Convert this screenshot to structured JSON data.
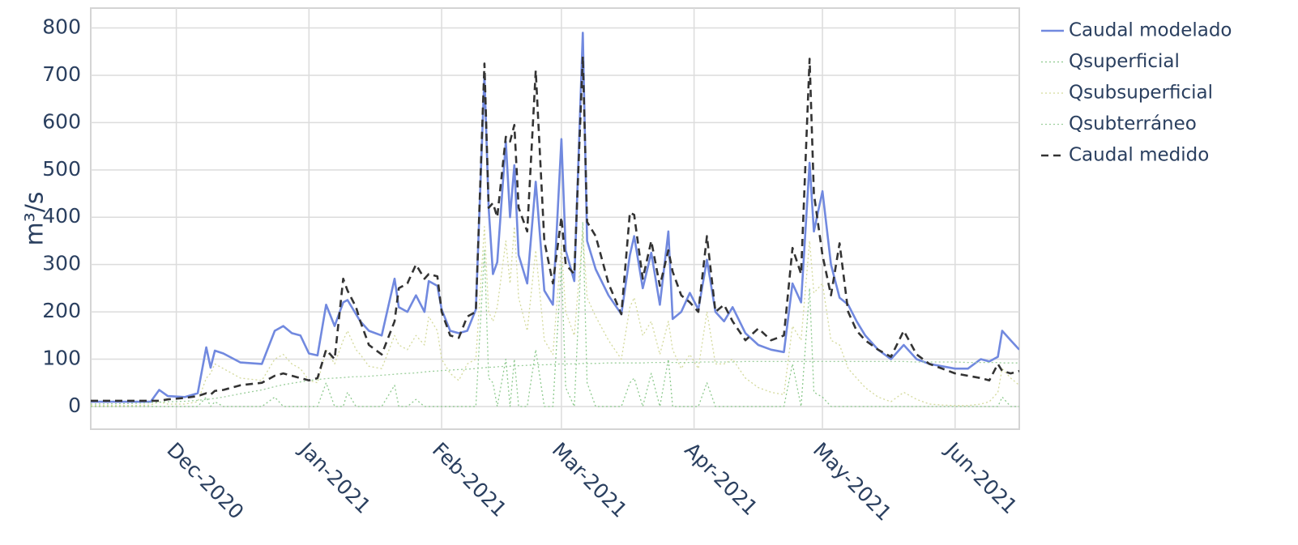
{
  "chart_data": {
    "type": "line",
    "y_label": "m³/s",
    "x": [
      "2020-11-11",
      "2020-11-19",
      "2020-11-25",
      "2020-11-27",
      "2020-11-29",
      "2020-12-03",
      "2020-12-06",
      "2020-12-08",
      "2020-12-09",
      "2020-12-10",
      "2020-12-12",
      "2020-12-16",
      "2020-12-21",
      "2020-12-24",
      "2020-12-26",
      "2020-12-28",
      "2020-12-30",
      "2021-01-01",
      "2021-01-03",
      "2021-01-05",
      "2021-01-07",
      "2021-01-09",
      "2021-01-10",
      "2021-01-12",
      "2021-01-13",
      "2021-01-15",
      "2021-01-18",
      "2021-01-21",
      "2021-01-22",
      "2021-01-24",
      "2021-01-26",
      "2021-01-28",
      "2021-01-29",
      "2021-01-31",
      "2021-02-01",
      "2021-02-03",
      "2021-02-05",
      "2021-02-07",
      "2021-02-09",
      "2021-02-11",
      "2021-02-12",
      "2021-02-13",
      "2021-02-14",
      "2021-02-16",
      "2021-02-17",
      "2021-02-18",
      "2021-02-19",
      "2021-02-21",
      "2021-02-23",
      "2021-02-25",
      "2021-02-27",
      "2021-03-01",
      "2021-03-02",
      "2021-03-04",
      "2021-03-06",
      "2021-03-07",
      "2021-03-09",
      "2021-03-12",
      "2021-03-15",
      "2021-03-17",
      "2021-03-18",
      "2021-03-20",
      "2021-03-22",
      "2021-03-24",
      "2021-03-26",
      "2021-03-27",
      "2021-03-29",
      "2021-03-31",
      "2021-04-02",
      "2021-04-04",
      "2021-04-06",
      "2021-04-08",
      "2021-04-10",
      "2021-04-13",
      "2021-04-16",
      "2021-04-19",
      "2021-04-22",
      "2021-04-24",
      "2021-04-26",
      "2021-04-28",
      "2021-04-29",
      "2021-05-01",
      "2021-05-03",
      "2021-05-05",
      "2021-05-07",
      "2021-05-09",
      "2021-05-11",
      "2021-05-14",
      "2021-05-17",
      "2021-05-20",
      "2021-05-23",
      "2021-05-26",
      "2021-05-29",
      "2021-06-01",
      "2021-06-04",
      "2021-06-07",
      "2021-06-09",
      "2021-06-11",
      "2021-06-12",
      "2021-06-14",
      "2021-06-16"
    ],
    "series": [
      {
        "name": "Caudal modelado",
        "color": "#7189df",
        "dash": "solid",
        "values": [
          10,
          10,
          10,
          35,
          22,
          20,
          28,
          125,
          82,
          118,
          112,
          93,
          90,
          160,
          170,
          155,
          150,
          112,
          108,
          215,
          170,
          220,
          225,
          195,
          180,
          160,
          150,
          270,
          210,
          200,
          235,
          200,
          265,
          255,
          205,
          160,
          155,
          160,
          205,
          700,
          420,
          280,
          305,
          560,
          400,
          510,
          320,
          260,
          475,
          245,
          215,
          565,
          330,
          265,
          790,
          350,
          290,
          235,
          195,
          320,
          360,
          250,
          325,
          215,
          370,
          185,
          200,
          240,
          205,
          310,
          200,
          180,
          210,
          155,
          130,
          120,
          115,
          260,
          220,
          515,
          370,
          455,
          300,
          230,
          215,
          180,
          150,
          120,
          100,
          130,
          100,
          90,
          85,
          80,
          80,
          100,
          95,
          105,
          160,
          140,
          120
        ]
      },
      {
        "name": "Qsuperficial",
        "color": "#8cc98c",
        "dash": "dot",
        "values": [
          0,
          0,
          0,
          0,
          0,
          0,
          0,
          20,
          0,
          10,
          0,
          0,
          0,
          20,
          0,
          0,
          0,
          0,
          0,
          50,
          0,
          0,
          30,
          0,
          0,
          0,
          0,
          45,
          0,
          0,
          15,
          0,
          0,
          0,
          0,
          0,
          0,
          0,
          0,
          330,
          60,
          50,
          0,
          100,
          0,
          100,
          0,
          0,
          120,
          0,
          0,
          300,
          40,
          0,
          390,
          50,
          0,
          0,
          0,
          50,
          60,
          0,
          70,
          0,
          100,
          0,
          0,
          0,
          0,
          50,
          0,
          0,
          0,
          0,
          0,
          0,
          0,
          90,
          0,
          250,
          30,
          20,
          0,
          0,
          0,
          0,
          0,
          0,
          0,
          0,
          0,
          0,
          0,
          0,
          0,
          0,
          0,
          0,
          20,
          0,
          0
        ]
      },
      {
        "name": "Qsubsuperficial",
        "color": "#d3d99a",
        "dash": "dot",
        "values": [
          2,
          2,
          3,
          10,
          5,
          5,
          10,
          60,
          70,
          90,
          80,
          60,
          55,
          100,
          110,
          90,
          80,
          55,
          50,
          120,
          90,
          140,
          160,
          120,
          110,
          85,
          80,
          150,
          130,
          120,
          150,
          130,
          190,
          160,
          100,
          70,
          55,
          90,
          100,
          380,
          200,
          180,
          210,
          350,
          260,
          380,
          230,
          160,
          330,
          140,
          110,
          340,
          200,
          150,
          370,
          230,
          190,
          140,
          100,
          210,
          230,
          150,
          180,
          110,
          180,
          120,
          80,
          110,
          80,
          200,
          90,
          90,
          100,
          60,
          40,
          30,
          25,
          170,
          140,
          350,
          240,
          260,
          140,
          130,
          80,
          60,
          40,
          20,
          10,
          30,
          15,
          5,
          3,
          2,
          2,
          5,
          10,
          30,
          80,
          60,
          45
        ]
      },
      {
        "name": "Qsubterráneo",
        "color": "#9ccf9c",
        "dash": "dot",
        "values": [
          5,
          6,
          8,
          9,
          10,
          11,
          13,
          15,
          16,
          17,
          20,
          27,
          35,
          42,
          46,
          49,
          52,
          55,
          57,
          59,
          60,
          61,
          62,
          63,
          63,
          64,
          66,
          68,
          69,
          70,
          71,
          73,
          74,
          75,
          76,
          77,
          78,
          79,
          80,
          82,
          83,
          83,
          84,
          85,
          85,
          86,
          86,
          87,
          88,
          88,
          89,
          90,
          90,
          90,
          91,
          91,
          91,
          92,
          92,
          92,
          92,
          92,
          93,
          93,
          93,
          93,
          93,
          93,
          94,
          94,
          94,
          94,
          94,
          95,
          95,
          95,
          95,
          95,
          95,
          95,
          95,
          95,
          95,
          95,
          95,
          95,
          95,
          95,
          95,
          95,
          94,
          94,
          94,
          94,
          93,
          93,
          93,
          93,
          92,
          92,
          92
        ]
      },
      {
        "name": "Caudal medido",
        "color": "#333333",
        "dash": "dash",
        "values": [
          12,
          12,
          12,
          12,
          15,
          18,
          22,
          28,
          25,
          33,
          35,
          45,
          50,
          65,
          70,
          65,
          60,
          55,
          60,
          120,
          100,
          270,
          245,
          210,
          180,
          130,
          110,
          180,
          250,
          260,
          300,
          270,
          280,
          275,
          200,
          150,
          145,
          190,
          200,
          725,
          420,
          430,
          400,
          570,
          560,
          595,
          420,
          370,
          710,
          350,
          260,
          400,
          300,
          280,
          740,
          390,
          360,
          260,
          195,
          410,
          405,
          270,
          350,
          255,
          330,
          285,
          235,
          220,
          200,
          360,
          200,
          215,
          180,
          140,
          165,
          140,
          150,
          335,
          280,
          735,
          450,
          320,
          235,
          345,
          200,
          160,
          140,
          120,
          105,
          160,
          110,
          90,
          80,
          70,
          65,
          60,
          55,
          90,
          75,
          70,
          75
        ]
      }
    ],
    "xlim": [
      "2020-11-11",
      "2021-06-16"
    ],
    "xticks": [
      {
        "value": "2020-12-01",
        "label": "Dec-2020"
      },
      {
        "value": "2021-01-01",
        "label": "Jan-2021"
      },
      {
        "value": "2021-02-01",
        "label": "Feb-2021"
      },
      {
        "value": "2021-03-01",
        "label": "Mar-2021"
      },
      {
        "value": "2021-04-01",
        "label": "Apr-2021"
      },
      {
        "value": "2021-05-01",
        "label": "May-2021"
      },
      {
        "value": "2021-06-01",
        "label": "Jun-2021"
      }
    ],
    "ylim": [
      -48,
      842
    ],
    "yticks": [
      0,
      100,
      200,
      300,
      400,
      500,
      600,
      700,
      800
    ],
    "grid": true,
    "legend": "right"
  }
}
